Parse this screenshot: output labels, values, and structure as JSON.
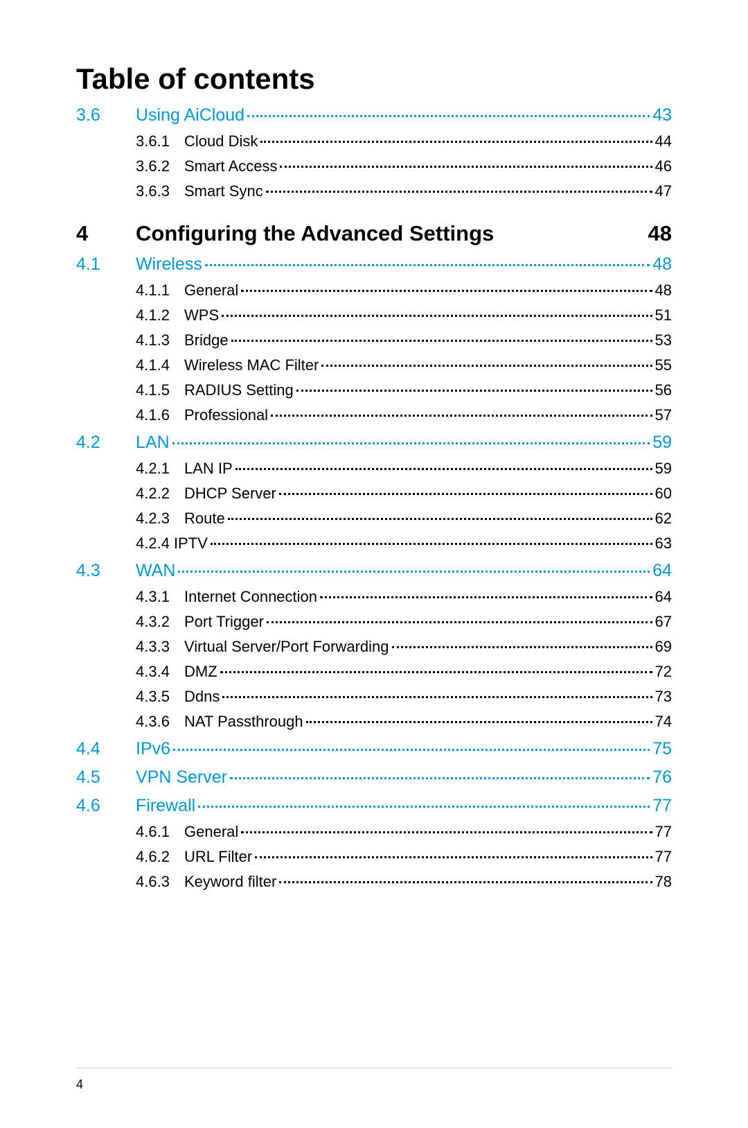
{
  "title": "Table of contents",
  "pageNumber": "4",
  "colors": {
    "section": "#0097d6",
    "text": "#000000",
    "rule": "#cfcfcf",
    "background": "#ffffff"
  },
  "typography": {
    "title_fontsize": 42,
    "chapter_fontsize": 31,
    "section_fontsize": 25,
    "sub_fontsize": 22
  },
  "entries": [
    {
      "type": "section",
      "num": "3.6",
      "label": "Using AiCloud",
      "page": "43"
    },
    {
      "type": "sub",
      "num": "3.6.1",
      "label": "Cloud Disk",
      "page": "44"
    },
    {
      "type": "sub",
      "num": "3.6.2",
      "label": "Smart Access",
      "page": "46"
    },
    {
      "type": "sub",
      "num": "3.6.3",
      "label": "Smart Sync",
      "page": "47"
    },
    {
      "type": "chapter",
      "num": "4",
      "label": "Configuring the Advanced Settings",
      "page": "48"
    },
    {
      "type": "section",
      "num": "4.1",
      "label": "Wireless",
      "page": "48"
    },
    {
      "type": "sub",
      "num": "4.1.1",
      "label": "General",
      "page": "48"
    },
    {
      "type": "sub",
      "num": "4.1.2",
      "label": "WPS",
      "page": "51"
    },
    {
      "type": "sub",
      "num": "4.1.3",
      "label": "Bridge",
      "page": "53"
    },
    {
      "type": "sub",
      "num": "4.1.4",
      "label": "Wireless MAC Filter",
      "page": "55"
    },
    {
      "type": "sub",
      "num": "4.1.5",
      "label": "RADIUS Setting",
      "page": "56"
    },
    {
      "type": "sub",
      "num": "4.1.6",
      "label": "Professional",
      "page": "57"
    },
    {
      "type": "section",
      "num": "4.2",
      "label": "LAN",
      "page": "59"
    },
    {
      "type": "sub",
      "num": "4.2.1",
      "label": "LAN IP",
      "page": "59"
    },
    {
      "type": "sub",
      "num": "4.2.2",
      "label": "DHCP Server",
      "page": "60"
    },
    {
      "type": "sub",
      "num": "4.2.3",
      "label": "Route",
      "page": "62"
    },
    {
      "type": "sub-alt",
      "num": "4.2.4",
      "label": "IPTV",
      "page": "63"
    },
    {
      "type": "section",
      "num": "4.3",
      "label": "WAN",
      "page": "64"
    },
    {
      "type": "sub",
      "num": "4.3.1",
      "label": "Internet Connection",
      "page": "64"
    },
    {
      "type": "sub",
      "num": "4.3.2",
      "label": "Port Trigger",
      "page": "67"
    },
    {
      "type": "sub",
      "num": "4.3.3",
      "label": "Virtual Server/Port Forwarding",
      "page": "69"
    },
    {
      "type": "sub",
      "num": "4.3.4",
      "label": "DMZ",
      "page": "72"
    },
    {
      "type": "sub",
      "num": "4.3.5",
      "label": "Ddns",
      "page": "73"
    },
    {
      "type": "sub",
      "num": "4.3.6",
      "label": "NAT Passthrough",
      "page": "74"
    },
    {
      "type": "section",
      "num": "4.4",
      "label": "IPv6",
      "page": "75"
    },
    {
      "type": "section",
      "num": "4.5",
      "label": "VPN Server",
      "page": "76"
    },
    {
      "type": "section",
      "num": "4.6",
      "label": "Firewall",
      "page": "77"
    },
    {
      "type": "sub",
      "num": "4.6.1",
      "label": "General",
      "page": "77"
    },
    {
      "type": "sub",
      "num": "4.6.2",
      "label": "URL Filter",
      "page": "77"
    },
    {
      "type": "sub",
      "num": "4.6.3",
      "label": "Keyword filter",
      "page": "78"
    }
  ]
}
